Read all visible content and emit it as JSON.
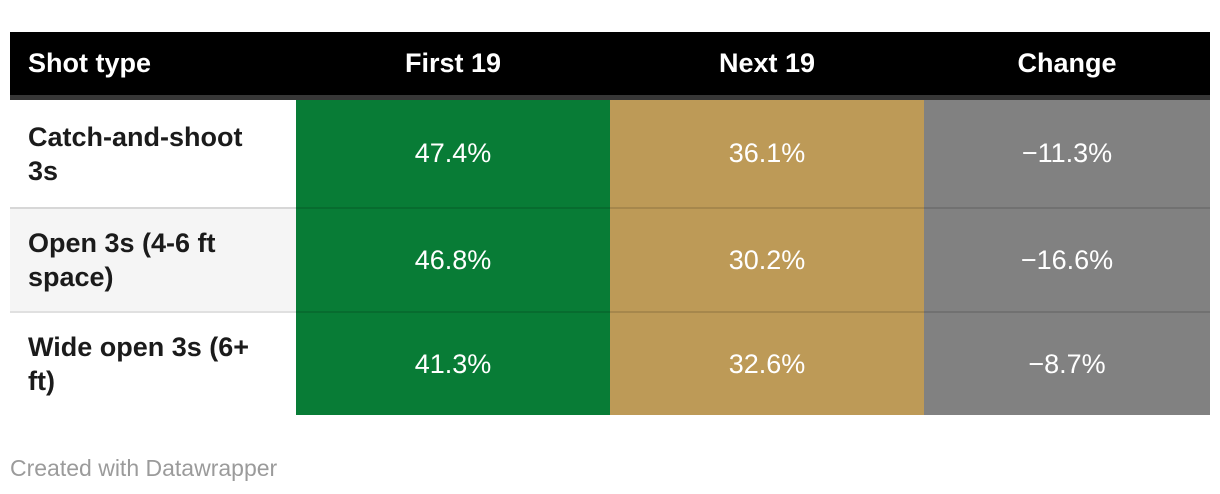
{
  "chart_data": {
    "type": "table",
    "title": "",
    "columns": [
      "Shot type",
      "First 19",
      "Next 19",
      "Change"
    ],
    "rows": [
      [
        "Catch-and-shoot 3s",
        "47.4%",
        "36.1%",
        "−11.3%"
      ],
      [
        "Open 3s (4-6 ft space)",
        "46.8%",
        "30.2%",
        "−16.6%"
      ],
      [
        "Wide open 3s (6+ ft)",
        "41.3%",
        "32.6%",
        "−8.7%"
      ]
    ],
    "series": [
      {
        "name": "First 19",
        "values": [
          47.4,
          46.8,
          41.3
        ],
        "unit": "%"
      },
      {
        "name": "Next 19",
        "values": [
          36.1,
          30.2,
          32.6
        ],
        "unit": "%"
      },
      {
        "name": "Change",
        "values": [
          -11.3,
          -16.6,
          -8.7
        ],
        "unit": "pp"
      }
    ],
    "categories": [
      "Catch-and-shoot 3s",
      "Open 3s (4-6 ft space)",
      "Wide open 3s (6+ ft)"
    ],
    "layout_hints": "heatmap-style table; First 19 column green, Next 19 column gold, Change column gray; black header row"
  },
  "table": {
    "header": {
      "shot_type": "Shot type",
      "first19": "First 19",
      "next19": "Next 19",
      "change": "Change"
    },
    "rows": [
      {
        "label": "Catch-and-shoot 3s",
        "first19": "47.4%",
        "next19": "36.1%",
        "change": "−11.3%"
      },
      {
        "label": "Open 3s (4-6 ft space)",
        "first19": "46.8%",
        "next19": "30.2%",
        "change": "−16.6%"
      },
      {
        "label": "Wide open 3s (6+ ft)",
        "first19": "41.3%",
        "next19": "32.6%",
        "change": "−8.7%"
      }
    ]
  },
  "colors": {
    "header_bg": "#000000",
    "header_border": "#373737",
    "header_text": "#ffffff",
    "first19_bg": "#087c36",
    "next19_bg": "#bd9a57",
    "change_bg": "#818181",
    "row_alt_bg": "#f5f5f5",
    "credit_text": "#9b9b9b"
  },
  "footer": {
    "credit": "Created with Datawrapper"
  }
}
